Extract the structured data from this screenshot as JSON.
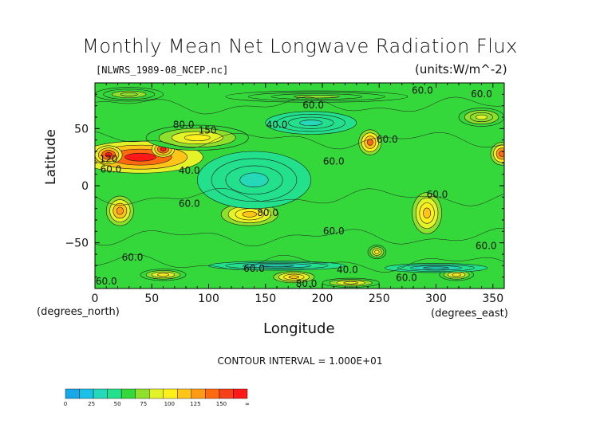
{
  "figure": {
    "title": "Monthly Mean Net Longwave Radiation Flux",
    "file_label": "[NLWRS_1989-08_NCEP.nc]",
    "units_label": "(units:W/m^-2)",
    "x_unit_note": "(degrees_north)",
    "x_unit_note_right": "(degrees_east)",
    "contour_interval": "CONTOUR INTERVAL = 1.000E+01"
  },
  "chart_data": {
    "type": "heatmap",
    "title": "Monthly Mean Net Longwave Radiation Flux",
    "xlabel": "Longitude",
    "ylabel": "Latitude",
    "xlim": [
      0,
      360
    ],
    "ylim": [
      -90,
      90
    ],
    "x_ticks": [
      0,
      50,
      100,
      150,
      200,
      250,
      300,
      350
    ],
    "y_ticks": [
      50,
      0,
      -50
    ],
    "x_tick_labels": [
      "0",
      "50",
      "100",
      "150",
      "200",
      "250",
      "300",
      "350"
    ],
    "y_tick_labels": [
      "50",
      "0",
      "−50"
    ],
    "contour_interval": 10,
    "colorbar": {
      "labels": [
        "0",
        "25",
        "50",
        "75",
        "100",
        "125",
        "150",
        "∞"
      ],
      "bins": [
        {
          "lo": 0,
          "hi": 12.5,
          "color": "#17a8e8"
        },
        {
          "lo": 12.5,
          "hi": 25,
          "color": "#1cc0e6"
        },
        {
          "lo": 25,
          "hi": 37.5,
          "color": "#24d8b8"
        },
        {
          "lo": 37.5,
          "hi": 50,
          "color": "#22e08c"
        },
        {
          "lo": 50,
          "hi": 62.5,
          "color": "#34d83a"
        },
        {
          "lo": 62.5,
          "hi": 75,
          "color": "#8ee02c"
        },
        {
          "lo": 75,
          "hi": 87.5,
          "color": "#e4f228"
        },
        {
          "lo": 87.5,
          "hi": 100,
          "color": "#fff01c"
        },
        {
          "lo": 100,
          "hi": 112.5,
          "color": "#ffc418"
        },
        {
          "lo": 112.5,
          "hi": 125,
          "color": "#ff9a14"
        },
        {
          "lo": 125,
          "hi": 137.5,
          "color": "#ff6a10"
        },
        {
          "lo": 137.5,
          "hi": 150,
          "color": "#f54018"
        },
        {
          "lo": 150,
          "hi": 200,
          "color": "#ff1818"
        }
      ]
    },
    "background_value": 50,
    "contour_labels": [
      {
        "x": 192,
        "y": 70,
        "text": "60.0"
      },
      {
        "x": 288,
        "y": 83,
        "text": "60.0"
      },
      {
        "x": 340,
        "y": 80,
        "text": "60.0"
      },
      {
        "x": 78,
        "y": 53,
        "text": "80.0"
      },
      {
        "x": 99,
        "y": 48,
        "text": "150"
      },
      {
        "x": 160,
        "y": 53,
        "text": "40.0"
      },
      {
        "x": 257,
        "y": 40,
        "text": "60.0"
      },
      {
        "x": 210,
        "y": 21,
        "text": "60.0"
      },
      {
        "x": 12,
        "y": 23,
        "text": "120"
      },
      {
        "x": 14,
        "y": 14,
        "text": "60.0"
      },
      {
        "x": 83,
        "y": 13,
        "text": "40.0"
      },
      {
        "x": 83,
        "y": -16,
        "text": "60.0"
      },
      {
        "x": 152,
        "y": -24,
        "text": "80.0"
      },
      {
        "x": 301,
        "y": -8,
        "text": "60.0"
      },
      {
        "x": 210,
        "y": -40,
        "text": "60.0"
      },
      {
        "x": 344,
        "y": -53,
        "text": "60.0"
      },
      {
        "x": 33,
        "y": -63,
        "text": "60.0"
      },
      {
        "x": 140,
        "y": -73,
        "text": "60.0"
      },
      {
        "x": 222,
        "y": -74,
        "text": "40.0"
      },
      {
        "x": 274,
        "y": -81,
        "text": "60.0"
      },
      {
        "x": 10,
        "y": -84,
        "text": "60.0"
      },
      {
        "x": 186,
        "y": -86,
        "text": "80.0"
      }
    ],
    "features": [
      {
        "x": 40,
        "y": 25,
        "rx": 55,
        "ry": 14,
        "value": 150
      },
      {
        "x": 12,
        "y": 27,
        "rx": 12,
        "ry": 8,
        "value": 165
      },
      {
        "x": 60,
        "y": 32,
        "rx": 10,
        "ry": 7,
        "value": 165
      },
      {
        "x": 90,
        "y": 42,
        "rx": 45,
        "ry": 11,
        "value": 95
      },
      {
        "x": 358,
        "y": 28,
        "rx": 10,
        "ry": 10,
        "value": 135
      },
      {
        "x": 242,
        "y": 38,
        "rx": 10,
        "ry": 11,
        "value": 125
      },
      {
        "x": 22,
        "y": -22,
        "rx": 12,
        "ry": 13,
        "value": 118
      },
      {
        "x": 136,
        "y": -25,
        "rx": 25,
        "ry": 10,
        "value": 110
      },
      {
        "x": 292,
        "y": -24,
        "rx": 5,
        "ry": 13,
        "value": 190
      },
      {
        "x": 292,
        "y": -24,
        "rx": 13,
        "ry": 18,
        "value": 100
      },
      {
        "x": 248,
        "y": -58,
        "rx": 8,
        "ry": 6,
        "value": 95
      },
      {
        "x": 175,
        "y": -80,
        "rx": 18,
        "ry": 5,
        "value": 100
      },
      {
        "x": 60,
        "y": -78,
        "rx": 20,
        "ry": 5,
        "value": 90
      },
      {
        "x": 225,
        "y": -85,
        "rx": 25,
        "ry": 4,
        "value": 85
      },
      {
        "x": 318,
        "y": -78,
        "rx": 15,
        "ry": 5,
        "value": 90
      },
      {
        "x": 140,
        "y": 5,
        "rx": 50,
        "ry": 25,
        "value": 35
      },
      {
        "x": 190,
        "y": 55,
        "rx": 40,
        "ry": 10,
        "value": 35
      },
      {
        "x": 160,
        "y": -70,
        "rx": 60,
        "ry": 4,
        "value": 25
      },
      {
        "x": 300,
        "y": -72,
        "rx": 45,
        "ry": 4,
        "value": 25
      },
      {
        "x": 340,
        "y": 60,
        "rx": 20,
        "ry": 8,
        "value": 80
      },
      {
        "x": 195,
        "y": 78,
        "rx": 80,
        "ry": 5,
        "value": 65
      },
      {
        "x": 30,
        "y": 80,
        "rx": 30,
        "ry": 6,
        "value": 70
      }
    ]
  }
}
